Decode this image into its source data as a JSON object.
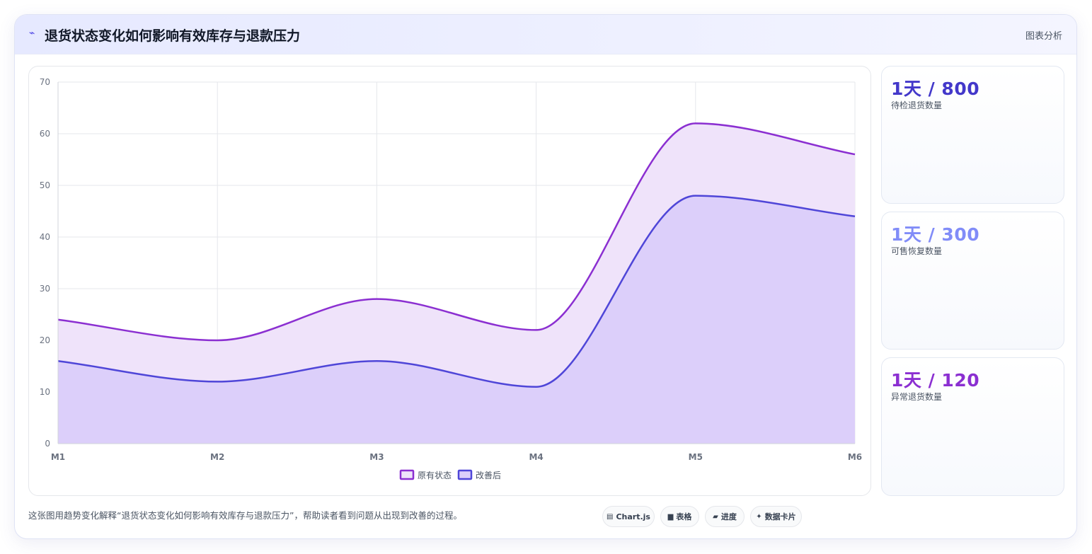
{
  "header": {
    "icon": "trend-icon",
    "title": "退货状态变化如何影响有效库存与退款压力",
    "tag": "图表分析"
  },
  "stats": [
    {
      "value": "1天 / 800",
      "label": "待检退货数量",
      "color": "#4338ca"
    },
    {
      "value": "1天 / 300",
      "label": "可售恢复数量",
      "color": "#818cf8"
    },
    {
      "value": "1天 / 120",
      "label": "异常退货数量",
      "color": "#8b2fd1"
    }
  ],
  "footer": {
    "note": "这张图用趋势变化解释“退货状态变化如何影响有效库存与退款压力”，帮助读者看到问题从出现到改善的过程。",
    "chips": [
      {
        "icon": "chart-icon",
        "glyph": "▤",
        "label": "Chart.js"
      },
      {
        "icon": "table-icon",
        "glyph": "▆",
        "label": "表格"
      },
      {
        "icon": "progress-icon",
        "glyph": "▰",
        "label": "进度"
      },
      {
        "icon": "sparkle-icon",
        "glyph": "✦",
        "label": "数据卡片"
      }
    ]
  },
  "chart_data": {
    "type": "area",
    "x": [
      "M1",
      "M2",
      "M3",
      "M4",
      "M5",
      "M6"
    ],
    "series": [
      {
        "name": "原有状态",
        "values": [
          24,
          20,
          28,
          22,
          62,
          56
        ],
        "color": "#8b2fd1",
        "fill": "#efe3fa"
      },
      {
        "name": "改善后",
        "values": [
          16,
          12,
          16,
          11,
          48,
          44
        ],
        "color": "#4f46d8",
        "fill": "#dccffa"
      }
    ],
    "ylim": [
      0,
      70
    ],
    "yticks": [
      0,
      10,
      20,
      30,
      40,
      50,
      60,
      70
    ],
    "grid": true,
    "legend": "bottom-center"
  }
}
